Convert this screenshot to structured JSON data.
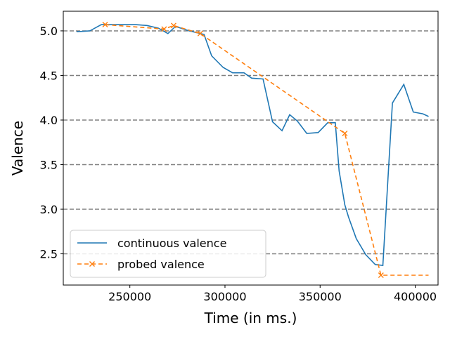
{
  "chart_data": {
    "type": "line",
    "xlabel": "Time (in ms.)",
    "ylabel": "Valence",
    "xlim": [
      215000,
      412000
    ],
    "ylim": [
      2.15,
      5.22
    ],
    "xticks": [
      250000,
      300000,
      350000,
      400000
    ],
    "yticks": [
      2.5,
      3.0,
      3.5,
      4.0,
      4.5,
      5.0
    ],
    "grid": "horizontal dashed",
    "legend_position": "lower-left",
    "series": [
      {
        "name": "continuous valence",
        "color": "#1f77b4",
        "style": "solid",
        "marker": "none",
        "x": [
          222000,
          229000,
          235000,
          241000,
          247000,
          253000,
          259000,
          265000,
          270000,
          274000,
          281000,
          289000,
          293000,
          299000,
          304000,
          310000,
          314000,
          320000,
          325000,
          330000,
          334000,
          338000,
          343000,
          349000,
          354000,
          358000,
          360000,
          363000,
          365000,
          369000,
          374000,
          379000,
          383000,
          388000,
          394000,
          399000,
          404000,
          407000
        ],
        "y": [
          4.99,
          5.0,
          5.07,
          5.07,
          5.07,
          5.07,
          5.06,
          5.03,
          4.97,
          5.05,
          5.0,
          4.96,
          4.72,
          4.59,
          4.53,
          4.53,
          4.47,
          4.46,
          3.98,
          3.88,
          4.06,
          3.99,
          3.85,
          3.86,
          3.97,
          3.97,
          3.43,
          3.05,
          2.91,
          2.67,
          2.49,
          2.38,
          2.37,
          4.19,
          4.4,
          4.09,
          4.07,
          4.04
        ]
      },
      {
        "name": "probed valence",
        "color": "#ff7f0e",
        "style": "dashed",
        "marker": "x",
        "x": [
          237000,
          268000,
          273000,
          287000,
          363000,
          382000,
          407000
        ],
        "y": [
          5.07,
          5.02,
          5.06,
          4.97,
          3.85,
          2.26,
          2.26
        ],
        "marked": [
          true,
          true,
          true,
          true,
          true,
          true,
          false
        ]
      }
    ]
  }
}
